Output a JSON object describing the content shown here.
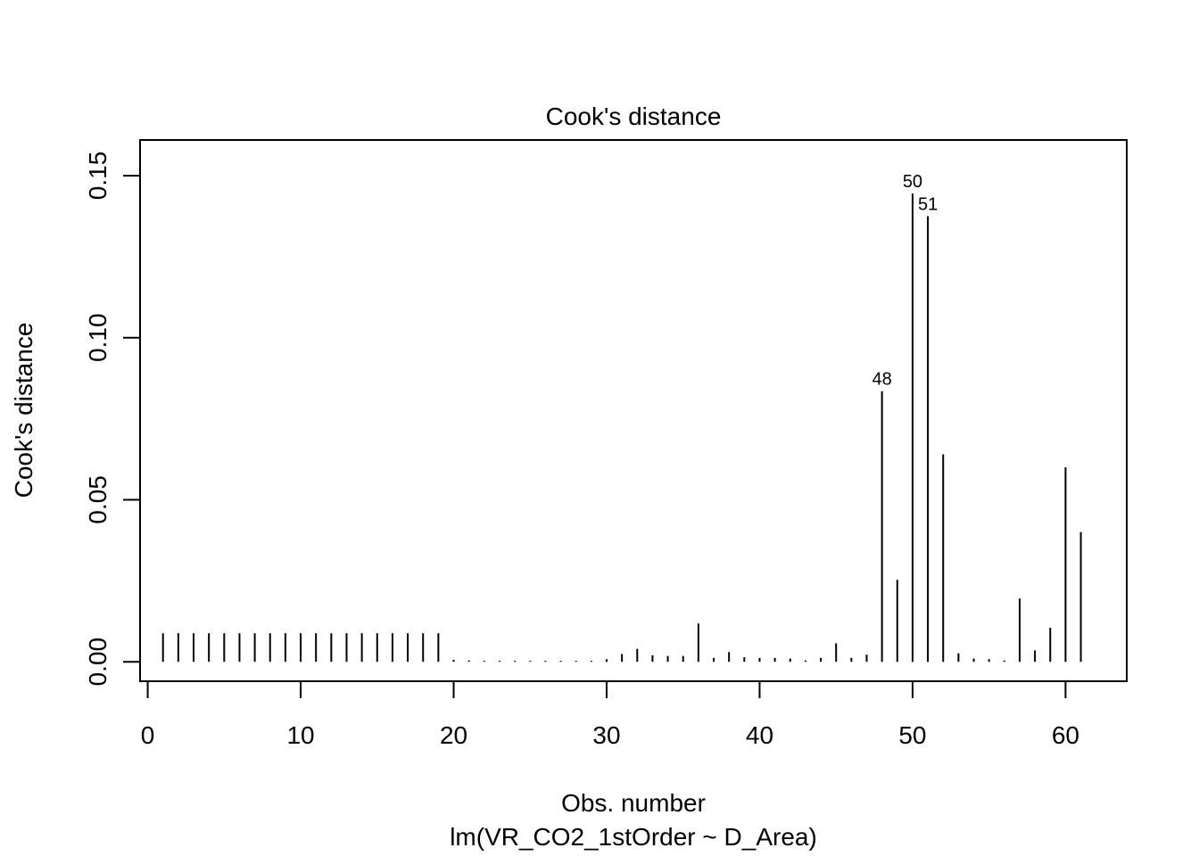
{
  "chart_data": {
    "type": "bar",
    "title": "Cook's distance",
    "xlabel": "Obs. number",
    "subtitle": "lm(VR_CO2_1stOrder ~ D_Area)",
    "ylabel": "Cook's distance",
    "xlim": [
      -0.5,
      64
    ],
    "ylim": [
      -0.006,
      0.161
    ],
    "xticks": [
      0,
      10,
      20,
      30,
      40,
      50,
      60
    ],
    "yticks": [
      0.0,
      0.05,
      0.1,
      0.15
    ],
    "ytick_labels": [
      "0.00",
      "0.05",
      "0.10",
      "0.15"
    ],
    "grid": false,
    "x": [
      1,
      2,
      3,
      4,
      5,
      6,
      7,
      8,
      9,
      10,
      11,
      12,
      13,
      14,
      15,
      16,
      17,
      18,
      19,
      20,
      21,
      22,
      23,
      24,
      25,
      26,
      27,
      28,
      29,
      30,
      31,
      32,
      33,
      34,
      35,
      36,
      37,
      38,
      39,
      40,
      41,
      42,
      43,
      44,
      45,
      46,
      47,
      48,
      49,
      50,
      51,
      52,
      53,
      54,
      55,
      56,
      57,
      58,
      59,
      60,
      61
    ],
    "values": [
      0.0088,
      0.0088,
      0.0088,
      0.0088,
      0.0088,
      0.0088,
      0.0088,
      0.0088,
      0.0088,
      0.0088,
      0.0088,
      0.0088,
      0.0088,
      0.0088,
      0.0088,
      0.0088,
      0.0088,
      0.0088,
      0.0088,
      0.0006,
      0.0004,
      0.0003,
      0.0003,
      0.0003,
      0.0003,
      0.0003,
      0.0003,
      0.0003,
      0.0003,
      0.0008,
      0.0024,
      0.004,
      0.002,
      0.0018,
      0.0018,
      0.0118,
      0.0012,
      0.003,
      0.0014,
      0.0012,
      0.0012,
      0.001,
      0.0004,
      0.0012,
      0.0057,
      0.0012,
      0.0022,
      0.0835,
      0.0253,
      0.1445,
      0.1375,
      0.064,
      0.0026,
      0.001,
      0.0008,
      0.0004,
      0.0195,
      0.0035,
      0.0105,
      0.06,
      0.04
    ],
    "annotations": [
      {
        "obs": 48,
        "text": "48"
      },
      {
        "obs": 50,
        "text": "50"
      },
      {
        "obs": 51,
        "text": "51"
      }
    ]
  }
}
